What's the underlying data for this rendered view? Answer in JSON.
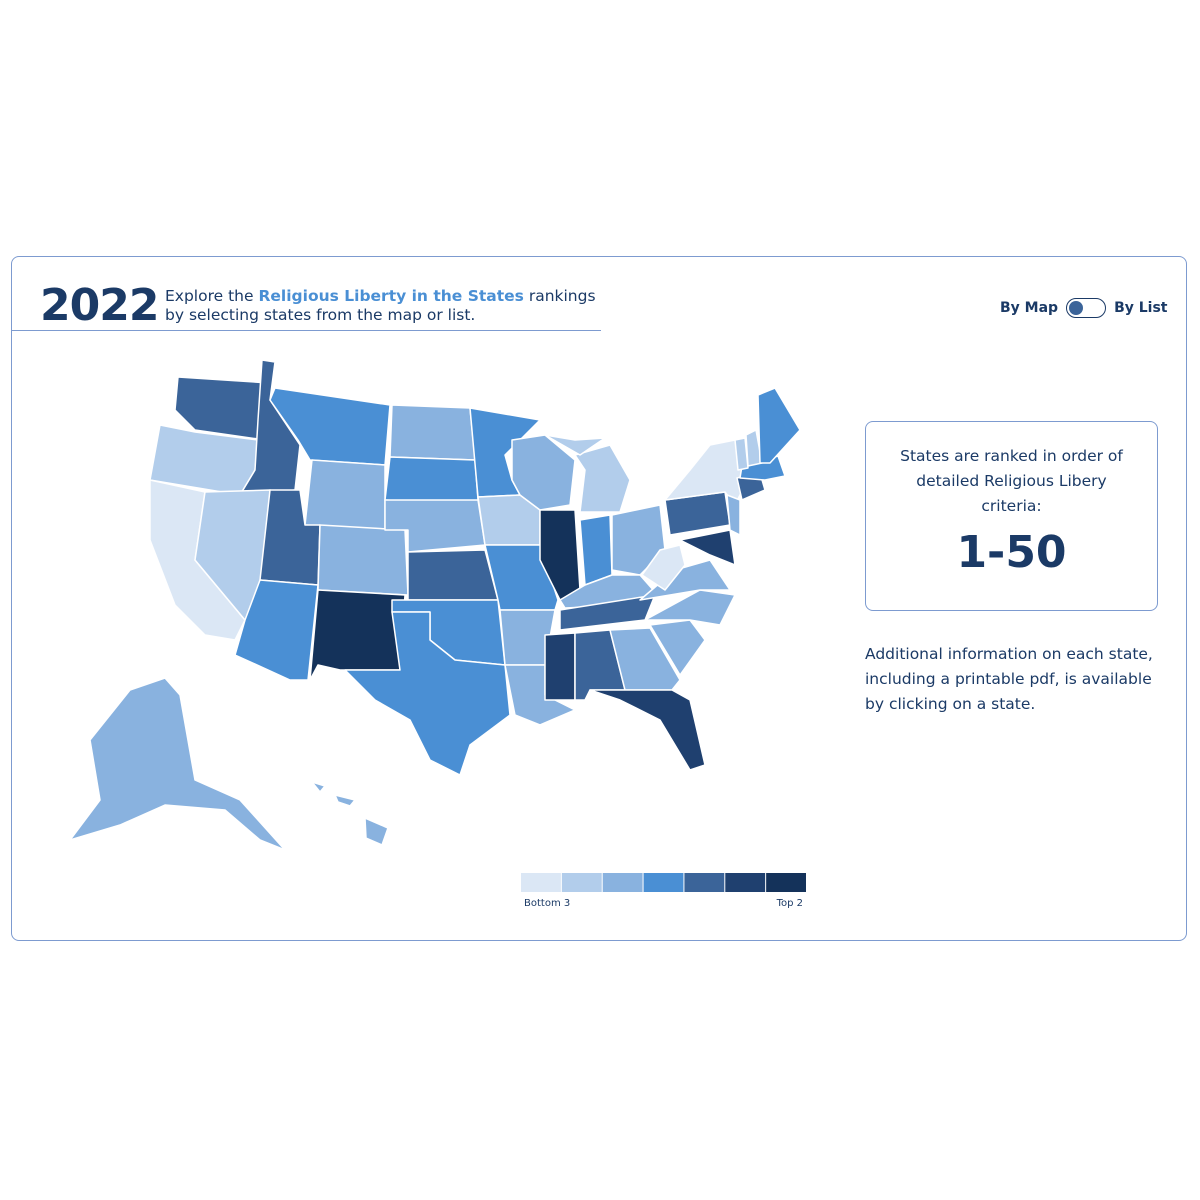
{
  "header": {
    "year": "2022",
    "intro_before": "Explore the",
    "intro_link": "Religious Liberty in the States",
    "intro_after": "rankings by selecting states from the map or list."
  },
  "toggle": {
    "left": "By Map",
    "right": "By List"
  },
  "info_box": {
    "text": "States are ranked in order of detailed Religious Libery criteria:",
    "range": "1-50"
  },
  "note": "Additional information on each state, including a printable pdf, is available by clicking on a state.",
  "legend": {
    "colors": [
      "#dbe7f5",
      "#b2cdeb",
      "#89b2df",
      "#4a8fd4",
      "#3b6499",
      "#1f406f",
      "#14325a"
    ],
    "low_label": "Bottom 3",
    "high_label": "Top 2"
  }
}
